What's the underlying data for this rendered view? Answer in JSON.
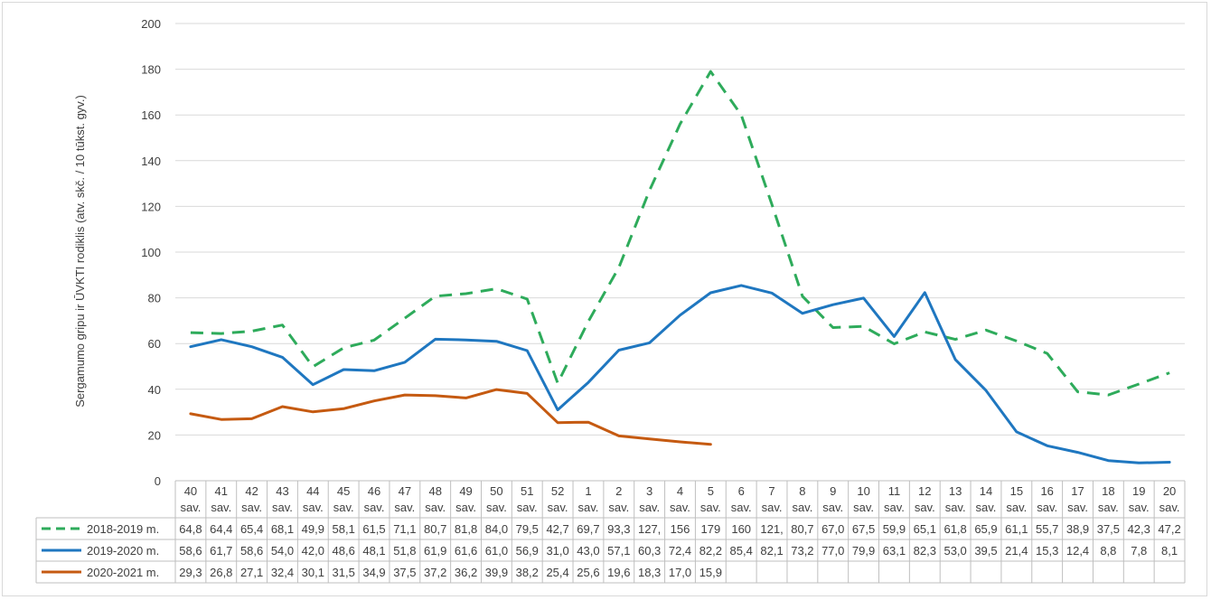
{
  "chart_data": {
    "type": "line",
    "ylabel": "Sergamumo gripu ir ŪVKTI rodiklis (atv. skč. / 10 tūkst. gyv.)",
    "ylim": [
      0,
      200
    ],
    "yticks": [
      "0",
      "20",
      "40",
      "60",
      "80",
      "100",
      "120",
      "140",
      "160",
      "180",
      "200"
    ],
    "grid": true,
    "categories_top": [
      "40",
      "41",
      "42",
      "43",
      "44",
      "45",
      "46",
      "47",
      "48",
      "49",
      "50",
      "51",
      "52",
      "1",
      "2",
      "3",
      "4",
      "5",
      "6",
      "7",
      "8",
      "9",
      "10",
      "11",
      "12",
      "13",
      "14",
      "15",
      "16",
      "17",
      "18",
      "19",
      "20"
    ],
    "categories_bottom": "sav.",
    "series": [
      {
        "name": "2018-2019 m.",
        "color": "#2eab5b",
        "dash": true,
        "values": [
          64.8,
          64.4,
          65.4,
          68.1,
          49.9,
          58.1,
          61.5,
          71.1,
          80.7,
          81.8,
          84.0,
          79.5,
          42.7,
          69.7,
          93.3,
          127,
          156,
          179,
          160,
          121,
          80.7,
          67.0,
          67.5,
          59.9,
          65.1,
          61.8,
          65.9,
          61.1,
          55.7,
          38.9,
          37.5,
          42.3,
          47.2
        ],
        "labels": [
          "64,8",
          "64,4",
          "65,4",
          "68,1",
          "49,9",
          "58,1",
          "61,5",
          "71,1",
          "80,7",
          "81,8",
          "84,0",
          "79,5",
          "42,7",
          "69,7",
          "93,3",
          "127,",
          "156",
          "179",
          "160",
          "121,",
          "80,7",
          "67,0",
          "67,5",
          "59,9",
          "65,1",
          "61,8",
          "65,9",
          "61,1",
          "55,7",
          "38,9",
          "37,5",
          "42,3",
          "47,2"
        ]
      },
      {
        "name": "2019-2020 m.",
        "color": "#1f77c0",
        "dash": false,
        "values": [
          58.6,
          61.7,
          58.6,
          54.0,
          42.0,
          48.6,
          48.1,
          51.8,
          61.9,
          61.6,
          61.0,
          56.9,
          31.0,
          43.0,
          57.1,
          60.3,
          72.4,
          82.2,
          85.4,
          82.1,
          73.2,
          77.0,
          79.9,
          63.1,
          82.3,
          53.0,
          39.5,
          21.4,
          15.3,
          12.4,
          8.8,
          7.8,
          8.1
        ],
        "labels": [
          "58,6",
          "61,7",
          "58,6",
          "54,0",
          "42,0",
          "48,6",
          "48,1",
          "51,8",
          "61,9",
          "61,6",
          "61,0",
          "56,9",
          "31,0",
          "43,0",
          "57,1",
          "60,3",
          "72,4",
          "82,2",
          "85,4",
          "82,1",
          "73,2",
          "77,0",
          "79,9",
          "63,1",
          "82,3",
          "53,0",
          "39,5",
          "21,4",
          "15,3",
          "12,4",
          "8,8",
          "7,8",
          "8,1"
        ]
      },
      {
        "name": "2020-2021 m.",
        "color": "#c55a11",
        "dash": false,
        "values": [
          29.3,
          26.8,
          27.1,
          32.4,
          30.1,
          31.5,
          34.9,
          37.5,
          37.2,
          36.2,
          39.9,
          38.2,
          25.4,
          25.6,
          19.6,
          18.3,
          17.0,
          15.9
        ],
        "labels": [
          "29,3",
          "26,8",
          "27,1",
          "32,4",
          "30,1",
          "31,5",
          "34,9",
          "37,5",
          "37,2",
          "36,2",
          "39,9",
          "38,2",
          "25,4",
          "25,6",
          "19,6",
          "18,3",
          "17,0",
          "15,9"
        ]
      }
    ]
  }
}
